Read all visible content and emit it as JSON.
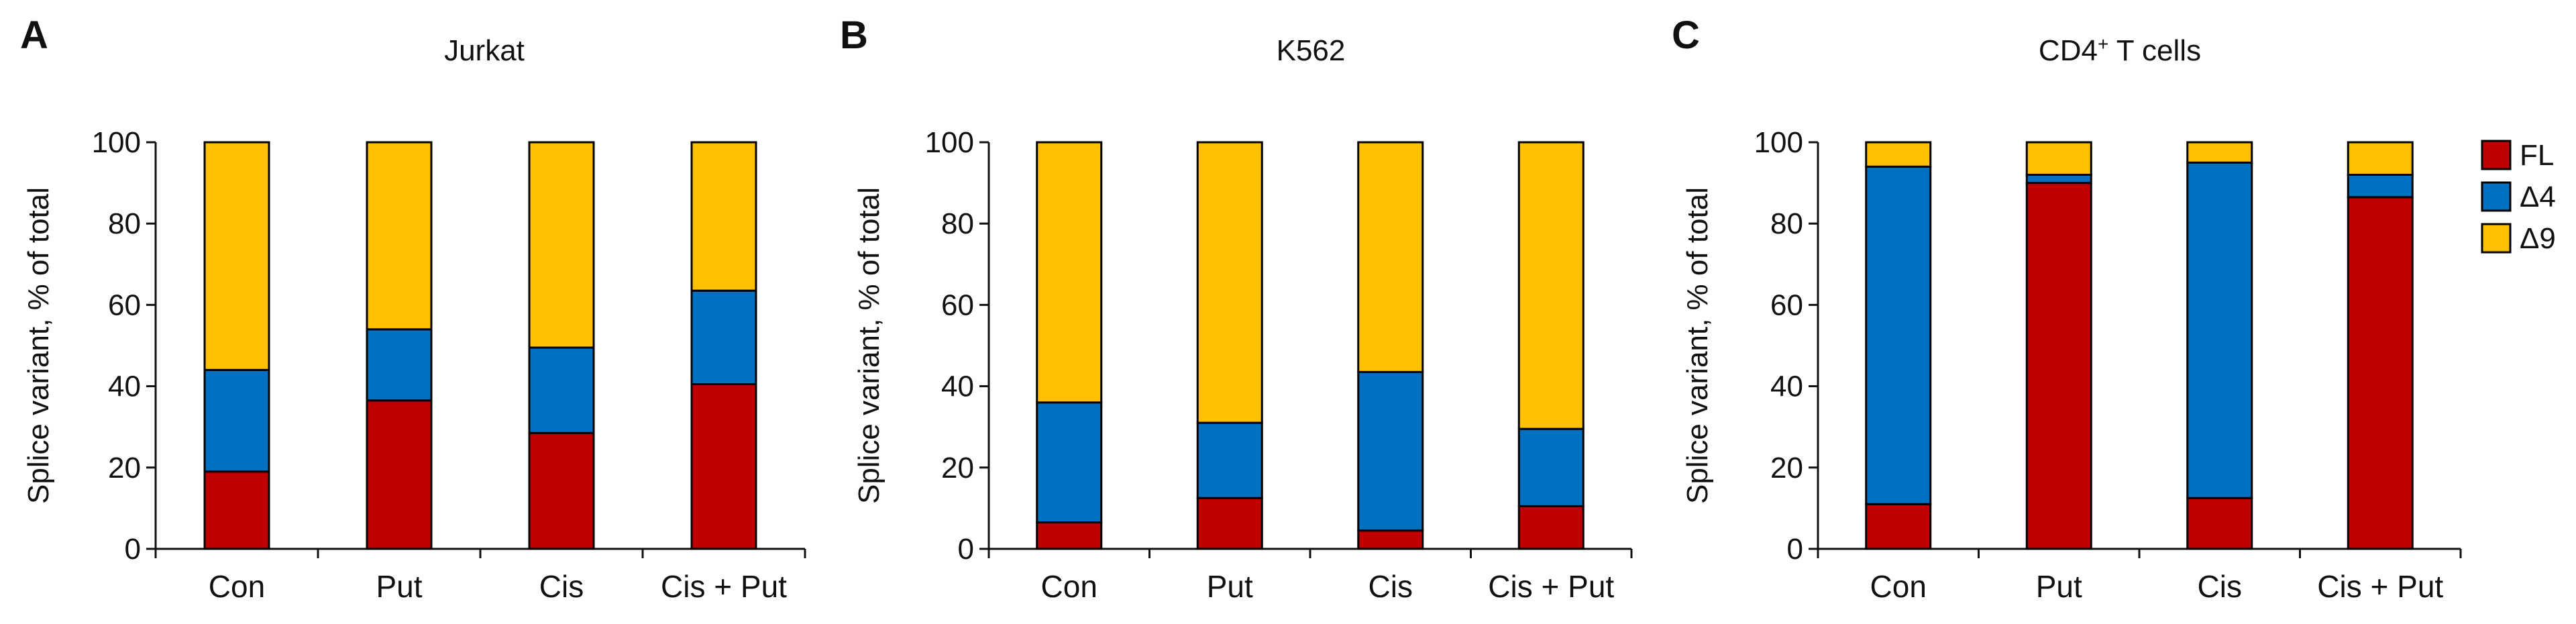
{
  "colors": {
    "FL": "#c00000",
    "delta4": "#0070c0",
    "delta9": "#ffc000",
    "axis": "#111111",
    "outline": "#000000"
  },
  "legend": {
    "placement": "top-right",
    "items": [
      {
        "key": "FL",
        "label": "FL"
      },
      {
        "key": "delta4",
        "label": "Δ4"
      },
      {
        "key": "delta9",
        "label": "Δ9"
      }
    ]
  },
  "chart_data": [
    {
      "panel": "A",
      "title": "Jurkat",
      "type": "bar",
      "stacked": true,
      "ylabel": "Splice variant, % of total",
      "ylim": [
        0,
        100
      ],
      "yticks": [
        0,
        20,
        40,
        60,
        80,
        100
      ],
      "categories": [
        "Con",
        "Put",
        "Cis",
        "Cis + Put"
      ],
      "series": [
        {
          "name": "FL",
          "values": [
            19,
            36.5,
            28.5,
            40.5
          ]
        },
        {
          "name": "Δ4",
          "values": [
            25,
            17.5,
            21,
            23
          ]
        },
        {
          "name": "Δ9",
          "values": [
            56,
            46,
            50.5,
            36.5
          ]
        }
      ]
    },
    {
      "panel": "B",
      "title": "K562",
      "type": "bar",
      "stacked": true,
      "ylabel": "Splice variant, % of total",
      "ylim": [
        0,
        100
      ],
      "yticks": [
        0,
        20,
        40,
        60,
        80,
        100
      ],
      "categories": [
        "Con",
        "Put",
        "Cis",
        "Cis + Put"
      ],
      "series": [
        {
          "name": "FL",
          "values": [
            6.5,
            12.5,
            4.5,
            10.5
          ]
        },
        {
          "name": "Δ4",
          "values": [
            29.5,
            18.5,
            39,
            19
          ]
        },
        {
          "name": "Δ9",
          "values": [
            64,
            69,
            56.5,
            70.5
          ]
        }
      ]
    },
    {
      "panel": "C",
      "title": "CD4",
      "title_sup": "+",
      "title_suffix": " T cells",
      "type": "bar",
      "stacked": true,
      "ylabel": "Splice variant, % of total",
      "ylim": [
        0,
        100
      ],
      "yticks": [
        0,
        20,
        40,
        60,
        80,
        100
      ],
      "categories": [
        "Con",
        "Put",
        "Cis",
        "Cis + Put"
      ],
      "series": [
        {
          "name": "FL",
          "values": [
            11,
            90,
            12.5,
            86.5
          ]
        },
        {
          "name": "Δ4",
          "values": [
            83,
            2,
            82.5,
            5.5
          ]
        },
        {
          "name": "Δ9",
          "values": [
            6,
            8,
            5,
            8
          ]
        }
      ]
    }
  ]
}
